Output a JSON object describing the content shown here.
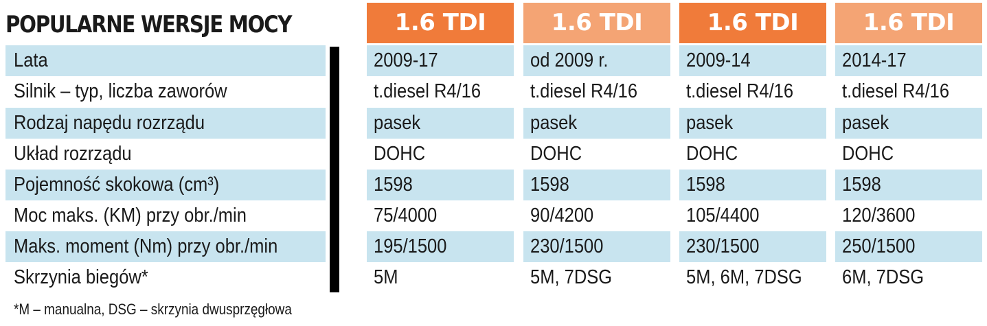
{
  "title": "POPULARNE WERSJE MOCY",
  "columns": [
    "1.6 TDI",
    "1.6 TDI",
    "1.6 TDI",
    "1.6 TDI"
  ],
  "header_colors": [
    "#f07b3a",
    "#f4a474",
    "#f07b3a",
    "#f4a474"
  ],
  "row_band_color": "#c8e4ef",
  "rows": [
    {
      "label": "Lata",
      "values": [
        "2009-17",
        "od 2009 r.",
        "2009-14",
        "2014-17"
      ]
    },
    {
      "label": "Silnik – typ, liczba zaworów",
      "values": [
        "t.diesel R4/16",
        "t.diesel R4/16",
        "t.diesel R4/16",
        "t.diesel R4/16"
      ]
    },
    {
      "label": "Rodzaj napędu rozrządu",
      "values": [
        "pasek",
        "pasek",
        "pasek",
        "pasek"
      ]
    },
    {
      "label": "Układ rozrządu",
      "values": [
        "DOHC",
        "DOHC",
        "DOHC",
        "DOHC"
      ]
    },
    {
      "label": "Pojemność skokowa (cm³)",
      "values": [
        "1598",
        "1598",
        "1598",
        "1598"
      ]
    },
    {
      "label": "Moc maks. (KM) przy obr./min",
      "values": [
        "75/4000",
        "90/4200",
        "105/4400",
        "120/3600"
      ]
    },
    {
      "label": "Maks. moment (Nm) przy obr./min",
      "values": [
        "195/1500",
        "230/1500",
        "230/1500",
        "250/1500"
      ]
    },
    {
      "label": "Skrzynia biegów*",
      "values": [
        "5M",
        "5M, 7DSG",
        "5M, 6M, 7DSG",
        "6M, 7DSG"
      ]
    }
  ],
  "footnote": "*M – manualna, DSG – skrzynia dwusprzęgłowa"
}
